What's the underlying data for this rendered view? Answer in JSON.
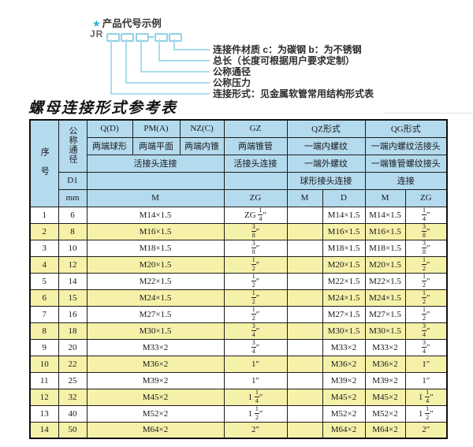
{
  "diagram": {
    "star": "★",
    "title": "产品代号示例",
    "prefix": "JR",
    "labels": [
      "连接件材质   c：为碳钢   b：为不锈钢",
      "总长（长度可根据用户要求定制）",
      "公称通径",
      "公称压力",
      "连接形式：见金属软管常用结构形式表"
    ]
  },
  "heading": "螺母连接形式参考表",
  "colors": {
    "header_blue": "#b4dbed",
    "stripe_yellow": "#f6f1a8",
    "diagram_cyan": "#8fd2e6",
    "star_cyan": "#2fafd8",
    "border_dark": "#1c1c1c"
  },
  "table": {
    "header": {
      "xuhao": "序号",
      "tongjing": "公称通径",
      "d1": "D1",
      "mm": "mm",
      "col_q": "Q(D)",
      "col_pm": "PM(A)",
      "col_nz": "NZ(C)",
      "col_gz": "GZ",
      "col_qz": "QZ形式",
      "col_qg": "QG形式",
      "q_desc": "两端球形",
      "pm_desc": "两端平面",
      "nz_desc": "两端内锥",
      "gz_desc": "两端锥管",
      "qz_desc1": "一端内螺纹",
      "qg_desc1": "一端内螺纹活接头",
      "mid_desc": "活接头连接",
      "gz_desc2": "活接头连接",
      "qz_desc2": "一端外螺纹",
      "qg_desc2": "一端锥管螺纹接头",
      "qz_desc3": "球形接头连接",
      "qg_desc3": "连接",
      "m_span": "M",
      "zg_label": "ZG",
      "qz_m": "M",
      "qz_d": "D",
      "qg_m": "M",
      "qg_zg": "ZG"
    },
    "rows": [
      [
        "1",
        "6",
        "M14×1.5",
        "ZG 1/4″",
        "",
        "M14×1.5",
        "M14×1.5",
        "1/4″"
      ],
      [
        "2",
        "8",
        "M16×1.5",
        "3/8″",
        "",
        "M16×1.5",
        "M16×1.5",
        "3/8″"
      ],
      [
        "3",
        "10",
        "M18×1.5",
        "3/8″",
        "",
        "M18×1.5",
        "M18×1.5",
        "3/8″"
      ],
      [
        "4",
        "12",
        "M20×1.5",
        "1/2″",
        "",
        "M20×1.5",
        "M20×1.5",
        "1/2″"
      ],
      [
        "5",
        "14",
        "M22×1.5",
        "1/2″",
        "",
        "M22×1.5",
        "M22×1.5",
        "1/2″"
      ],
      [
        "6",
        "15",
        "M24×1.5",
        "1/2″",
        "",
        "M24×1.5",
        "M24×1.5",
        "1/2″"
      ],
      [
        "7",
        "16",
        "M27×1.5",
        "1/2″",
        "",
        "M27×1.5",
        "M27×1.5",
        "1/2″"
      ],
      [
        "8",
        "18",
        "M30×1.5",
        "3/4″",
        "",
        "M30×1.5",
        "M30×1.5",
        "3/4″"
      ],
      [
        "9",
        "20",
        "M33×2",
        "3/4″",
        "",
        "M33×2",
        "M33×2",
        "3/4″"
      ],
      [
        "10",
        "22",
        "M36×2",
        "1″",
        "",
        "M36×2",
        "M36×2",
        "1″"
      ],
      [
        "11",
        "25",
        "M39×2",
        "1″",
        "",
        "M39×2",
        "M39×2",
        "1″"
      ],
      [
        "12",
        "32",
        "M45×2",
        "1 1/4″",
        "",
        "M45×2",
        "M45×2",
        "1 1/4″"
      ],
      [
        "13",
        "40",
        "M52×2",
        "1 1/2″",
        "",
        "M52×2",
        "M52×2",
        "1 1/2″"
      ],
      [
        "14",
        "50",
        "M64×2",
        "2″",
        "",
        "M64×2",
        "M64×2",
        "2″"
      ]
    ]
  }
}
